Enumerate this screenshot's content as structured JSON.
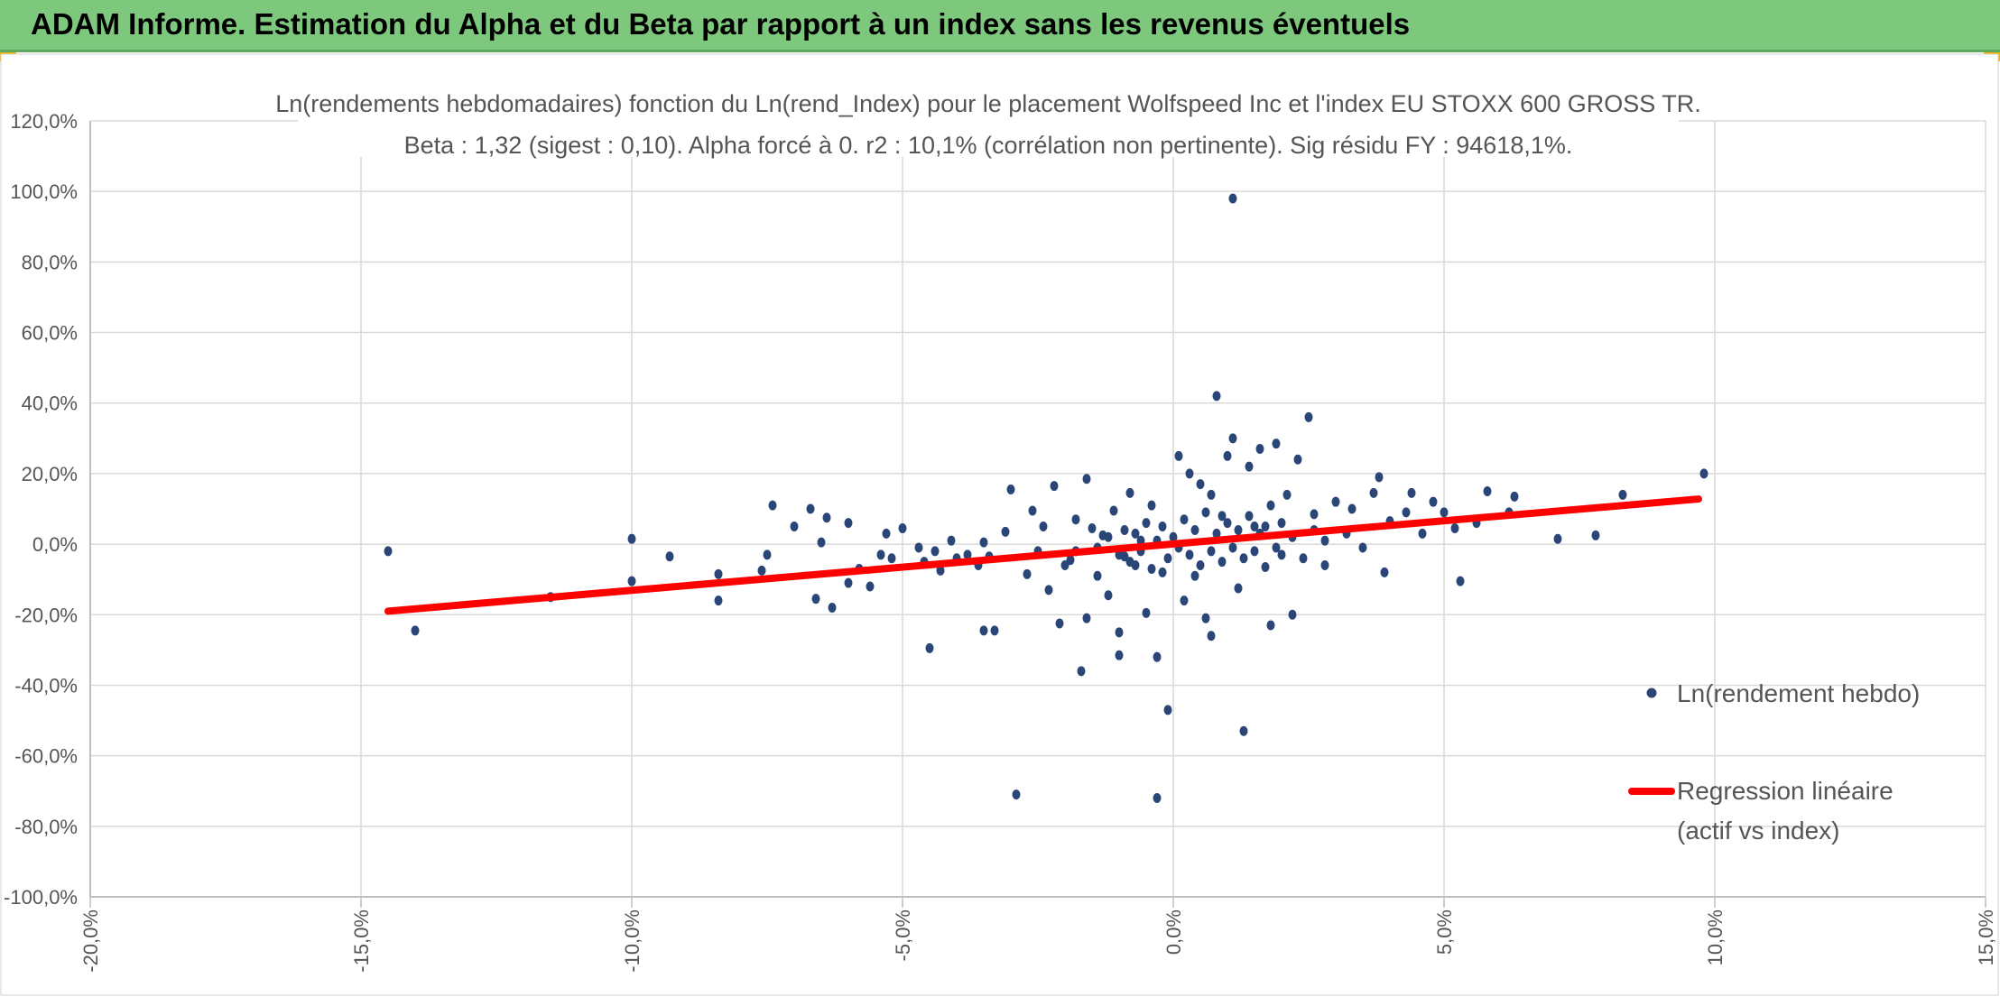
{
  "banner": {
    "title": "ADAM Informe. Estimation du Alpha et du Beta par rapport à un index sans les revenus éventuels",
    "background": "#7ec87e",
    "corner_color": "#f2b600"
  },
  "chart_data": {
    "type": "scatter",
    "title_line1": "Ln(rendements hebdomadaires) fonction du Ln(rend_Index) pour le placement Wolfspeed Inc et l'index EU STOXX 600 GROSS TR.",
    "title_line2": "Beta : 1,32 (sigest : 0,10). Alpha forcé à 0. r2 : 10,1% (corrélation non pertinente). Sig résidu FY : 94618,1%.",
    "xlim": [
      -20,
      15
    ],
    "ylim": [
      -100,
      120
    ],
    "x_ticks": [
      -20,
      -15,
      -10,
      -5,
      0,
      5,
      10,
      15
    ],
    "y_ticks": [
      -100,
      -80,
      -60,
      -40,
      -20,
      0,
      20,
      40,
      60,
      80,
      100,
      120
    ],
    "x_tick_labels": [
      "-20,0%",
      "-15,0%",
      "-10,0%",
      "-5,0%",
      "0,0%",
      "5,0%",
      "10,0%",
      "15,0%"
    ],
    "y_tick_labels": [
      "-100,0%",
      "-80,0%",
      "-60,0%",
      "-40,0%",
      "-20,0%",
      "0,0%",
      "20,0%",
      "40,0%",
      "60,0%",
      "80,0%",
      "100,0%",
      "120,0%"
    ],
    "grid": true,
    "legend_position": "right",
    "series": [
      {
        "name": "Ln(rendement hebdo)",
        "kind": "scatter",
        "color": "#2a4677",
        "points": [
          [
            -14.5,
            -2
          ],
          [
            -14,
            -24.5
          ],
          [
            -11.5,
            -15
          ],
          [
            -10,
            -10.5
          ],
          [
            -10,
            1.5
          ],
          [
            -9.3,
            -3.5
          ],
          [
            -8.4,
            -16
          ],
          [
            -8.4,
            -8.5
          ],
          [
            -7.6,
            -7.5
          ],
          [
            -7.5,
            -3
          ],
          [
            -7.4,
            11
          ],
          [
            -7,
            5
          ],
          [
            -6.7,
            10
          ],
          [
            -6.6,
            -15.5
          ],
          [
            -6.5,
            0.5
          ],
          [
            -6.4,
            7.5
          ],
          [
            -6.3,
            -18
          ],
          [
            -6,
            6
          ],
          [
            -6,
            -11
          ],
          [
            -5.8,
            -7
          ],
          [
            -5.6,
            -12
          ],
          [
            -5.4,
            -3
          ],
          [
            -5.3,
            3
          ],
          [
            -5.2,
            -4
          ],
          [
            -5,
            4.5
          ],
          [
            -4.7,
            -1
          ],
          [
            -4.6,
            -5
          ],
          [
            -4.5,
            -29.5
          ],
          [
            -4.4,
            -2
          ],
          [
            -4.3,
            -7.5
          ],
          [
            -4.1,
            1
          ],
          [
            -4,
            -4
          ],
          [
            -3.8,
            -3
          ],
          [
            -3.6,
            -6
          ],
          [
            -3.5,
            -24.5
          ],
          [
            -3.5,
            0.5
          ],
          [
            -3.4,
            -3.5
          ],
          [
            -3.3,
            -24.5
          ],
          [
            -3.1,
            3.5
          ],
          [
            -3.0,
            15.5
          ],
          [
            -2.9,
            -71
          ],
          [
            -2.7,
            -8.5
          ],
          [
            -2.6,
            9.5
          ],
          [
            -2.5,
            -2
          ],
          [
            -2.4,
            5
          ],
          [
            -2.3,
            -13
          ],
          [
            -2.2,
            16.5
          ],
          [
            -2.1,
            -22.5
          ],
          [
            -2.0,
            -6
          ],
          [
            -1.9,
            -4.5
          ],
          [
            -1.8,
            7
          ],
          [
            -1.8,
            -2
          ],
          [
            -1.7,
            -36
          ],
          [
            -1.6,
            -21
          ],
          [
            -1.6,
            18.5
          ],
          [
            -1.5,
            4.5
          ],
          [
            -1.4,
            -9
          ],
          [
            -1.3,
            2.5
          ],
          [
            -1.2,
            -14.5
          ],
          [
            -1.1,
            9.5
          ],
          [
            -1.0,
            -31.5
          ],
          [
            -1.0,
            -25
          ],
          [
            -0.9,
            -3.5
          ],
          [
            -0.8,
            14.5
          ],
          [
            -0.7,
            -6
          ],
          [
            -0.6,
            1
          ],
          [
            -0.5,
            -19.5
          ],
          [
            -0.4,
            11
          ],
          [
            -0.3,
            -32
          ],
          [
            -0.3,
            -72
          ],
          [
            -0.2,
            -8
          ],
          [
            -0.1,
            -47
          ],
          [
            0.1,
            25
          ],
          [
            0.2,
            -16
          ],
          [
            0.3,
            20
          ],
          [
            0.4,
            -9
          ],
          [
            0.5,
            17
          ],
          [
            0.6,
            -21
          ],
          [
            0.7,
            -26
          ],
          [
            0.7,
            14
          ],
          [
            0.8,
            42
          ],
          [
            0.9,
            8
          ],
          [
            1.0,
            25
          ],
          [
            1.1,
            30
          ],
          [
            1.1,
            98
          ],
          [
            1.2,
            -12.5
          ],
          [
            1.3,
            -53
          ],
          [
            1.4,
            22
          ],
          [
            1.5,
            5
          ],
          [
            1.6,
            27
          ],
          [
            1.7,
            -6.5
          ],
          [
            1.8,
            11
          ],
          [
            1.8,
            -23
          ],
          [
            1.9,
            28.5
          ],
          [
            2.0,
            -3
          ],
          [
            2.1,
            14
          ],
          [
            2.2,
            -20
          ],
          [
            2.3,
            24
          ],
          [
            2.5,
            36
          ],
          [
            2.6,
            8.5
          ],
          [
            2.8,
            -6
          ],
          [
            3.0,
            12
          ],
          [
            3.2,
            3
          ],
          [
            3.3,
            10
          ],
          [
            3.5,
            -1
          ],
          [
            3.7,
            14.5
          ],
          [
            3.8,
            19
          ],
          [
            3.9,
            -8
          ],
          [
            4.0,
            6.5
          ],
          [
            4.3,
            9
          ],
          [
            4.4,
            14.5
          ],
          [
            4.6,
            3
          ],
          [
            4.8,
            12
          ],
          [
            5.0,
            9
          ],
          [
            5.2,
            4.5
          ],
          [
            5.3,
            -10.5
          ],
          [
            5.6,
            6
          ],
          [
            5.8,
            15
          ],
          [
            6.2,
            9
          ],
          [
            6.3,
            13.5
          ],
          [
            7.1,
            1.5
          ],
          [
            7.8,
            2.5
          ],
          [
            8.3,
            14
          ],
          [
            9.8,
            20
          ],
          [
            -1.4,
            -1
          ],
          [
            -1.2,
            2
          ],
          [
            -1.0,
            -3
          ],
          [
            -0.9,
            4
          ],
          [
            -0.8,
            -5
          ],
          [
            -0.7,
            3
          ],
          [
            -0.6,
            -2
          ],
          [
            -0.5,
            6
          ],
          [
            -0.4,
            -7
          ],
          [
            -0.3,
            1
          ],
          [
            -0.2,
            5
          ],
          [
            -0.1,
            -4
          ],
          [
            0.0,
            2
          ],
          [
            0.1,
            -1
          ],
          [
            0.2,
            7
          ],
          [
            0.3,
            -3
          ],
          [
            0.4,
            4
          ],
          [
            0.5,
            -6
          ],
          [
            0.6,
            9
          ],
          [
            0.7,
            -2
          ],
          [
            0.8,
            3
          ],
          [
            0.9,
            -5
          ],
          [
            1.0,
            6
          ],
          [
            1.1,
            -1
          ],
          [
            1.2,
            4
          ],
          [
            1.3,
            -4
          ],
          [
            1.4,
            8
          ],
          [
            1.5,
            -2
          ],
          [
            1.6,
            3
          ],
          [
            1.7,
            5
          ],
          [
            1.9,
            -1
          ],
          [
            2.0,
            6
          ],
          [
            2.2,
            2
          ],
          [
            2.4,
            -4
          ],
          [
            2.6,
            4
          ],
          [
            2.8,
            1
          ]
        ]
      },
      {
        "name": "Regression linéaire (actif vs index)",
        "kind": "line",
        "color": "#ff0000",
        "points": [
          [
            -14.5,
            -19
          ],
          [
            9.7,
            12.8
          ]
        ]
      }
    ],
    "legend": {
      "scatter_label": "Ln(rendement hebdo)",
      "line_label_1": "Regression linéaire",
      "line_label_2": "(actif vs index)"
    }
  }
}
